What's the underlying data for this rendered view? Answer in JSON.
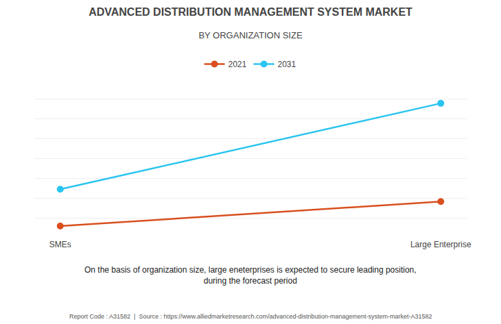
{
  "chart_data": {
    "type": "line",
    "title": "ADVANCED DISTRIBUTION MANAGEMENT SYSTEM MARKET",
    "subtitle": "BY ORGANIZATION SIZE",
    "categories": [
      "SMEs",
      "Large Enterprise"
    ],
    "series": [
      {
        "name": "2021",
        "color": "#D94F1E",
        "values": [
          1,
          3
        ]
      },
      {
        "name": "2031",
        "color": "#29C4F0",
        "values": [
          4,
          11
        ]
      }
    ],
    "ylim": [
      0,
      13
    ],
    "yticks": [
      0,
      1.625,
      3.25,
      4.875,
      6.5,
      8.125,
      9.75,
      11.375,
      13
    ],
    "grid": true,
    "tick_labels": "x",
    "legend": "top",
    "marker": "circle",
    "annotations": [
      "On the basis of organization size, large eneterprises is expected to secure leading position,\nduring the forecast period",
      "Report Code : A31582  |  Source : https://www.alliedmarketresearch.com/advanced-distribution-management-system-market-A31582"
    ]
  }
}
